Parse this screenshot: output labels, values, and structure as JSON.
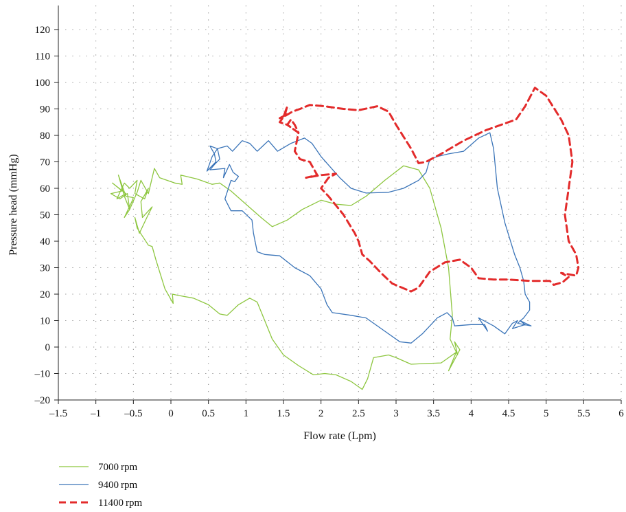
{
  "chart_data": {
    "type": "line",
    "title": "",
    "xlabel": "Flow rate (Lpm)",
    "ylabel": "Pressure head (mmHg)",
    "xlim": [
      -1.5,
      6
    ],
    "ylim": [
      -20,
      125
    ],
    "x_ticks": [
      -1.5,
      -1,
      -0.5,
      0,
      0.5,
      1,
      1.5,
      2,
      2.5,
      3,
      3.5,
      4,
      4.5,
      5,
      5.5,
      6
    ],
    "x_tick_labels": [
      "–1.5",
      "–1",
      "–0.5",
      "0",
      "0.5",
      "1",
      "1.5",
      "2",
      "2.5",
      "3",
      "3.5",
      "4",
      "4.5",
      "5",
      "5.5",
      "6"
    ],
    "y_ticks": [
      -20,
      -10,
      0,
      10,
      20,
      30,
      40,
      50,
      60,
      70,
      80,
      90,
      100,
      110,
      120
    ],
    "y_tick_labels": [
      "–20",
      "–10",
      "0",
      "10",
      "20",
      "30",
      "40",
      "50",
      "60",
      "70",
      "80",
      "90",
      "100",
      "110",
      "120"
    ],
    "grid": true,
    "legend_position": "bottom-left",
    "series": [
      {
        "name": "7000 rpm",
        "color": "#8dc63f",
        "dashed": false,
        "points": [
          [
            -0.22,
            67.5
          ],
          [
            -0.15,
            64
          ],
          [
            0.05,
            62
          ],
          [
            0.15,
            61.5
          ],
          [
            0.13,
            65
          ],
          [
            0.35,
            63.5
          ],
          [
            0.55,
            61.5
          ],
          [
            0.65,
            62
          ],
          [
            0.8,
            59
          ],
          [
            1.0,
            54
          ],
          [
            1.2,
            49
          ],
          [
            1.35,
            45.5
          ],
          [
            1.55,
            48
          ],
          [
            1.75,
            52
          ],
          [
            2.0,
            55.5
          ],
          [
            2.2,
            54
          ],
          [
            2.4,
            53.5
          ],
          [
            2.6,
            57
          ],
          [
            2.85,
            63
          ],
          [
            3.1,
            68.5
          ],
          [
            3.3,
            67
          ],
          [
            3.45,
            60
          ],
          [
            3.6,
            45
          ],
          [
            3.7,
            30
          ],
          [
            3.75,
            12
          ],
          [
            3.72,
            3
          ],
          [
            3.82,
            -3
          ],
          [
            3.78,
            2
          ],
          [
            3.85,
            -1
          ],
          [
            3.7,
            -9
          ],
          [
            3.8,
            -2
          ],
          [
            3.6,
            -6
          ],
          [
            3.4,
            -6.2
          ],
          [
            3.2,
            -6.5
          ],
          [
            3.0,
            -4
          ],
          [
            2.9,
            -3
          ],
          [
            2.7,
            -4
          ],
          [
            2.62,
            -12
          ],
          [
            2.55,
            -16
          ],
          [
            2.4,
            -13
          ],
          [
            2.2,
            -10.5
          ],
          [
            2.05,
            -10
          ],
          [
            1.9,
            -10.5
          ],
          [
            1.7,
            -7
          ],
          [
            1.5,
            -3
          ],
          [
            1.35,
            3
          ],
          [
            1.25,
            10
          ],
          [
            1.15,
            17
          ],
          [
            1.05,
            18.5
          ],
          [
            0.9,
            16
          ],
          [
            0.75,
            12
          ],
          [
            0.65,
            12.5
          ],
          [
            0.5,
            16
          ],
          [
            0.3,
            18.5
          ],
          [
            0.1,
            19.5
          ],
          [
            0.02,
            20
          ],
          [
            0.03,
            16.5
          ],
          [
            -0.08,
            22
          ],
          [
            -0.2,
            33
          ],
          [
            -0.25,
            38
          ],
          [
            -0.3,
            38.5
          ],
          [
            -0.45,
            45
          ],
          [
            -0.48,
            49
          ],
          [
            -0.42,
            43
          ],
          [
            -0.32,
            49
          ],
          [
            -0.25,
            53
          ],
          [
            -0.38,
            49
          ],
          [
            -0.4,
            55
          ],
          [
            -0.3,
            60
          ],
          [
            -0.35,
            56
          ],
          [
            -0.48,
            58
          ],
          [
            -0.45,
            63
          ],
          [
            -0.55,
            60
          ],
          [
            -0.62,
            62
          ],
          [
            -0.72,
            56
          ],
          [
            -0.6,
            58
          ],
          [
            -0.78,
            62
          ],
          [
            -0.65,
            59
          ],
          [
            -0.8,
            58
          ],
          [
            -0.68,
            56
          ],
          [
            -0.58,
            58
          ],
          [
            -0.55,
            52
          ],
          [
            -0.62,
            57
          ],
          [
            -0.7,
            65
          ],
          [
            -0.6,
            57
          ],
          [
            -0.5,
            56.5
          ],
          [
            -0.52,
            55
          ],
          [
            -0.62,
            49
          ],
          [
            -0.55,
            52
          ],
          [
            -0.45,
            58.5
          ],
          [
            -0.4,
            63
          ],
          [
            -0.3,
            58
          ],
          [
            -0.22,
            67.5
          ]
        ]
      },
      {
        "name": "9400 rpm",
        "color": "#3a74b8",
        "dashed": false,
        "points": [
          [
            0.62,
            75
          ],
          [
            0.65,
            71
          ],
          [
            0.58,
            69
          ],
          [
            0.52,
            67
          ],
          [
            0.72,
            67.5
          ],
          [
            0.7,
            64
          ],
          [
            0.78,
            69
          ],
          [
            0.83,
            66
          ],
          [
            0.9,
            64.5
          ],
          [
            0.85,
            62.5
          ],
          [
            0.8,
            63
          ],
          [
            0.72,
            56
          ],
          [
            0.8,
            51.5
          ],
          [
            0.95,
            51.5
          ],
          [
            1.08,
            48
          ],
          [
            1.1,
            43
          ],
          [
            1.15,
            36
          ],
          [
            1.25,
            35
          ],
          [
            1.45,
            34.5
          ],
          [
            1.65,
            30
          ],
          [
            1.85,
            27
          ],
          [
            2.0,
            22
          ],
          [
            2.08,
            16
          ],
          [
            2.15,
            13
          ],
          [
            2.4,
            12
          ],
          [
            2.6,
            11
          ],
          [
            2.85,
            6
          ],
          [
            3.05,
            2
          ],
          [
            3.2,
            1.5
          ],
          [
            3.35,
            5
          ],
          [
            3.55,
            11
          ],
          [
            3.68,
            13
          ],
          [
            3.75,
            11
          ],
          [
            3.78,
            8
          ],
          [
            4.0,
            8.5
          ],
          [
            4.18,
            8.5
          ],
          [
            4.22,
            6
          ],
          [
            4.1,
            11
          ],
          [
            4.3,
            8
          ],
          [
            4.45,
            5
          ],
          [
            4.55,
            9
          ],
          [
            4.62,
            10
          ],
          [
            4.55,
            7
          ],
          [
            4.72,
            8.5
          ],
          [
            4.65,
            10
          ],
          [
            4.8,
            8
          ],
          [
            4.62,
            9
          ],
          [
            4.7,
            11
          ],
          [
            4.78,
            14
          ],
          [
            4.78,
            17
          ],
          [
            4.72,
            20
          ],
          [
            4.7,
            25
          ],
          [
            4.65,
            30
          ],
          [
            4.58,
            35
          ],
          [
            4.45,
            47
          ],
          [
            4.35,
            60
          ],
          [
            4.3,
            75
          ],
          [
            4.25,
            81
          ],
          [
            4.1,
            79
          ],
          [
            3.9,
            74
          ],
          [
            3.7,
            73
          ],
          [
            3.55,
            72
          ],
          [
            3.45,
            71
          ],
          [
            3.4,
            66
          ],
          [
            3.3,
            63
          ],
          [
            3.1,
            60
          ],
          [
            2.9,
            58.5
          ],
          [
            2.6,
            58.2
          ],
          [
            2.4,
            60
          ],
          [
            2.25,
            64
          ],
          [
            2.0,
            72
          ],
          [
            1.88,
            77
          ],
          [
            1.78,
            79
          ],
          [
            1.6,
            77
          ],
          [
            1.42,
            74
          ],
          [
            1.3,
            78
          ],
          [
            1.15,
            74
          ],
          [
            1.05,
            77
          ],
          [
            0.95,
            78
          ],
          [
            0.82,
            74
          ],
          [
            0.75,
            76
          ],
          [
            0.62,
            75
          ],
          [
            0.55,
            72
          ],
          [
            0.48,
            66.5
          ],
          [
            0.6,
            70
          ],
          [
            0.58,
            73
          ],
          [
            0.52,
            76
          ],
          [
            0.62,
            75
          ]
        ]
      },
      {
        "name": "11400 rpm",
        "color": "#e32b2b",
        "dashed": true,
        "points": [
          [
            1.52,
            88
          ],
          [
            1.55,
            91
          ],
          [
            1.5,
            87
          ],
          [
            1.62,
            89
          ],
          [
            1.72,
            90
          ],
          [
            1.85,
            91.5
          ],
          [
            2.05,
            91
          ],
          [
            2.3,
            90
          ],
          [
            2.5,
            89.5
          ],
          [
            2.75,
            91
          ],
          [
            2.9,
            89
          ],
          [
            3.0,
            84
          ],
          [
            3.2,
            75
          ],
          [
            3.3,
            69.5
          ],
          [
            3.4,
            70
          ],
          [
            3.6,
            73
          ],
          [
            3.9,
            78
          ],
          [
            4.2,
            82
          ],
          [
            4.6,
            86
          ],
          [
            4.72,
            91
          ],
          [
            4.85,
            98
          ],
          [
            5.0,
            95
          ],
          [
            5.2,
            86
          ],
          [
            5.3,
            80
          ],
          [
            5.35,
            70
          ],
          [
            5.3,
            60
          ],
          [
            5.25,
            50
          ],
          [
            5.3,
            40
          ],
          [
            5.4,
            35
          ],
          [
            5.43,
            30
          ],
          [
            5.4,
            27
          ],
          [
            5.2,
            28
          ],
          [
            5.3,
            26.5
          ],
          [
            5.22,
            24.5
          ],
          [
            5.1,
            23.5
          ],
          [
            5.05,
            25
          ],
          [
            4.8,
            25
          ],
          [
            4.5,
            25.5
          ],
          [
            4.3,
            25.5
          ],
          [
            4.1,
            26
          ],
          [
            4.0,
            30
          ],
          [
            3.85,
            33
          ],
          [
            3.65,
            32
          ],
          [
            3.45,
            28.5
          ],
          [
            3.3,
            22.5
          ],
          [
            3.2,
            21
          ],
          [
            2.95,
            24
          ],
          [
            2.8,
            28
          ],
          [
            2.65,
            32.5
          ],
          [
            2.55,
            35
          ],
          [
            2.5,
            40
          ],
          [
            2.45,
            43
          ],
          [
            2.3,
            50
          ],
          [
            2.1,
            57
          ],
          [
            2.0,
            60
          ],
          [
            2.1,
            64
          ],
          [
            2.2,
            65.5
          ],
          [
            2.0,
            65
          ],
          [
            1.8,
            64
          ],
          [
            1.95,
            65
          ],
          [
            1.85,
            70
          ],
          [
            1.72,
            71
          ],
          [
            1.65,
            74
          ],
          [
            1.7,
            81
          ],
          [
            1.6,
            83
          ],
          [
            1.55,
            84
          ],
          [
            1.7,
            81
          ],
          [
            1.65,
            84
          ],
          [
            1.6,
            86
          ],
          [
            1.55,
            84
          ],
          [
            1.45,
            85
          ],
          [
            1.5,
            87
          ],
          [
            1.45,
            86.5
          ],
          [
            1.55,
            88
          ],
          [
            1.52,
            88
          ]
        ]
      }
    ]
  }
}
